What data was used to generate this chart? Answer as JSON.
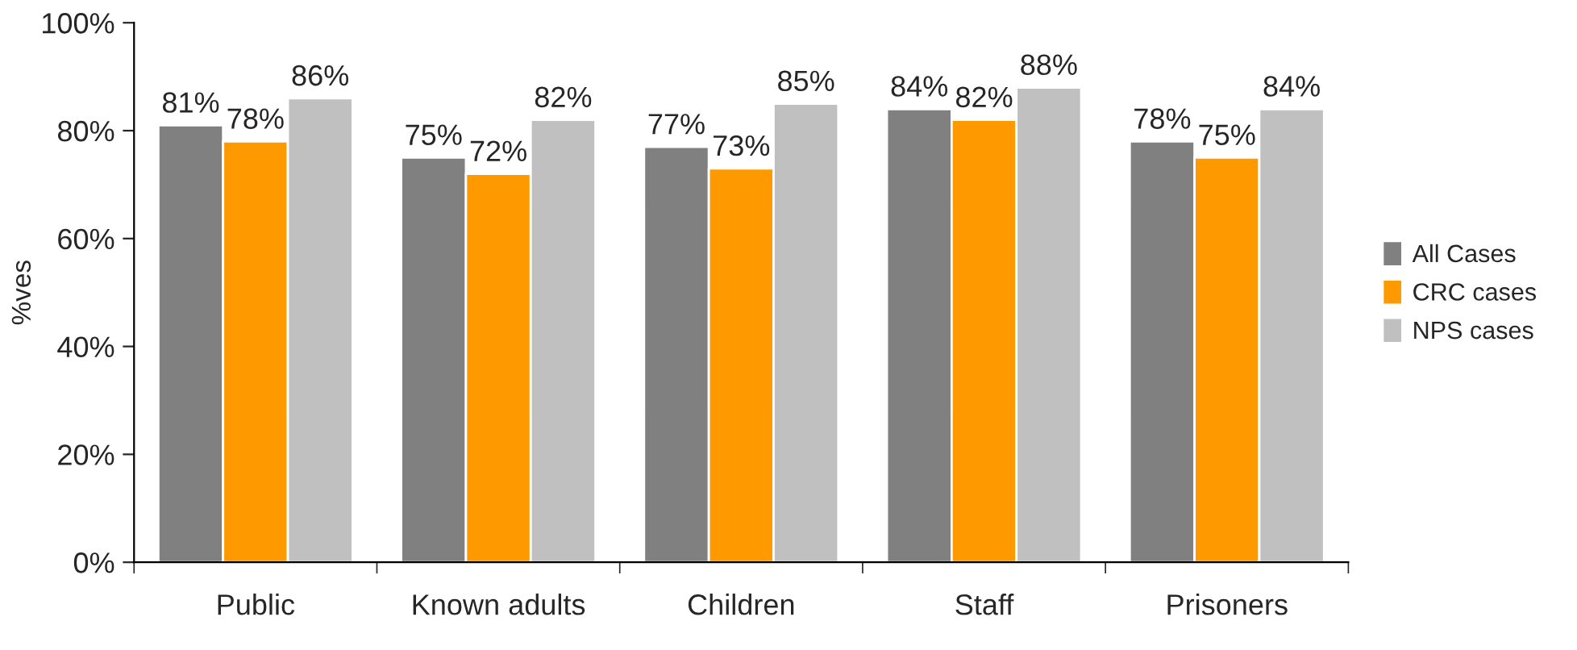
{
  "chart_data": {
    "type": "bar",
    "ylabel": "%ves",
    "categories": [
      "Public",
      "Known adults",
      "Children",
      "Staff",
      "Prisoners"
    ],
    "series": [
      {
        "name": "All Cases",
        "color": "#808080",
        "values": [
          81,
          75,
          77,
          84,
          78
        ],
        "value_labels": [
          "81%",
          "75%",
          "77%",
          "84%",
          "78%"
        ]
      },
      {
        "name": "CRC cases",
        "color": "#ff9900",
        "values": [
          78,
          72,
          73,
          82,
          75
        ],
        "value_labels": [
          "78%",
          "72%",
          "73%",
          "82%",
          "75%"
        ]
      },
      {
        "name": "NPS cases",
        "color": "#c0c0c0",
        "values": [
          86,
          82,
          85,
          88,
          84
        ],
        "value_labels": [
          "86%",
          "82%",
          "85%",
          "88%",
          "84%"
        ]
      }
    ],
    "ylim": [
      0,
      100
    ],
    "yticks": [
      {
        "value": 0,
        "label": "0%"
      },
      {
        "value": 20,
        "label": "20%"
      },
      {
        "value": 40,
        "label": "40%"
      },
      {
        "value": 60,
        "label": "60%"
      },
      {
        "value": 80,
        "label": "80%"
      },
      {
        "value": 100,
        "label": "100%"
      }
    ],
    "grid": false,
    "legend": "right"
  }
}
